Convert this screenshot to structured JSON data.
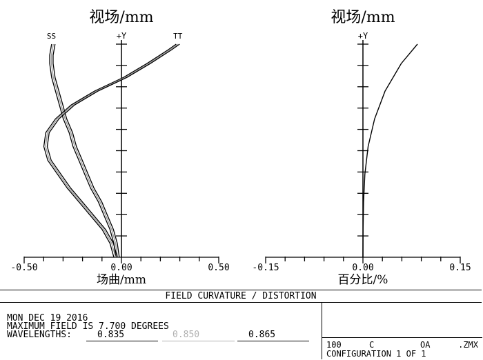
{
  "chart_data": [
    {
      "type": "line",
      "title": "视场/mm",
      "xlabel": "场曲/mm",
      "y_axis_label": "+Y",
      "xlim": [
        -0.5,
        0.5
      ],
      "ylim": [
        0,
        7.7
      ],
      "x_tick_labels": [
        "-0.50",
        "0.00",
        "0.50"
      ],
      "x_ticks": [
        -0.5,
        0,
        0.5
      ],
      "grid": false,
      "curve_labels": [
        "SS",
        "TT"
      ],
      "series": [
        {
          "name": "SS",
          "points": [
            [
              -0.02,
              0
            ],
            [
              -0.03,
              0.5
            ],
            [
              -0.05,
              1.0
            ],
            [
              -0.08,
              1.5
            ],
            [
              -0.11,
              2.0
            ],
            [
              -0.15,
              2.5
            ],
            [
              -0.18,
              3.0
            ],
            [
              -0.21,
              3.5
            ],
            [
              -0.24,
              4.0
            ],
            [
              -0.26,
              4.5
            ],
            [
              -0.29,
              5.0
            ],
            [
              -0.31,
              5.5
            ],
            [
              -0.33,
              6.0
            ],
            [
              -0.35,
              6.5
            ],
            [
              -0.36,
              7.0
            ],
            [
              -0.36,
              7.3
            ],
            [
              -0.35,
              7.7
            ]
          ]
        },
        {
          "name": "TT",
          "points": [
            [
              -0.03,
              0
            ],
            [
              -0.05,
              0.5
            ],
            [
              -0.09,
              1.0
            ],
            [
              -0.15,
              1.5
            ],
            [
              -0.21,
              2.0
            ],
            [
              -0.27,
              2.5
            ],
            [
              -0.32,
              3.0
            ],
            [
              -0.37,
              3.5
            ],
            [
              -0.39,
              4.0
            ],
            [
              -0.38,
              4.5
            ],
            [
              -0.33,
              5.0
            ],
            [
              -0.25,
              5.5
            ],
            [
              -0.13,
              6.0
            ],
            [
              0.02,
              6.5
            ],
            [
              0.14,
              7.0
            ],
            [
              0.25,
              7.5
            ],
            [
              0.29,
              7.7
            ]
          ]
        }
      ]
    },
    {
      "type": "line",
      "title": "视场/mm",
      "xlabel": "百分比/%",
      "y_axis_label": "+Y",
      "xlim": [
        -0.15,
        0.15
      ],
      "ylim": [
        0,
        7.7
      ],
      "x_tick_labels": [
        "-0.15",
        "0.00",
        "0.15"
      ],
      "x_ticks": [
        -0.15,
        0,
        0.15
      ],
      "grid": false,
      "series": [
        {
          "name": "Distortion",
          "points": [
            [
              0,
              0
            ],
            [
              0.0002,
              1.0
            ],
            [
              0.001,
              2.0
            ],
            [
              0.003,
              3.0
            ],
            [
              0.008,
              4.0
            ],
            [
              0.018,
              5.0
            ],
            [
              0.034,
              6.0
            ],
            [
              0.059,
              7.0
            ],
            [
              0.084,
              7.7
            ]
          ]
        }
      ]
    }
  ],
  "banner": "FIELD CURVATURE / DISTORTION",
  "info": {
    "date": "MON DEC 19 2016",
    "max_field": "MAXIMUM FIELD IS 7.700 DEGREES",
    "wavelengths_label": "WAVELENGTHS:",
    "wavelengths": [
      {
        "value": "0.835",
        "color": "#000000"
      },
      {
        "value": "0.850",
        "color": "#b0b0b0"
      },
      {
        "value": "0.865",
        "color": "#000000"
      }
    ]
  },
  "config": {
    "lens": "100",
    "c_label": "C",
    "oa_label": "OA",
    "file_ext": ".ZMX",
    "configuration": "CONFIGURATION 1 OF 1"
  }
}
